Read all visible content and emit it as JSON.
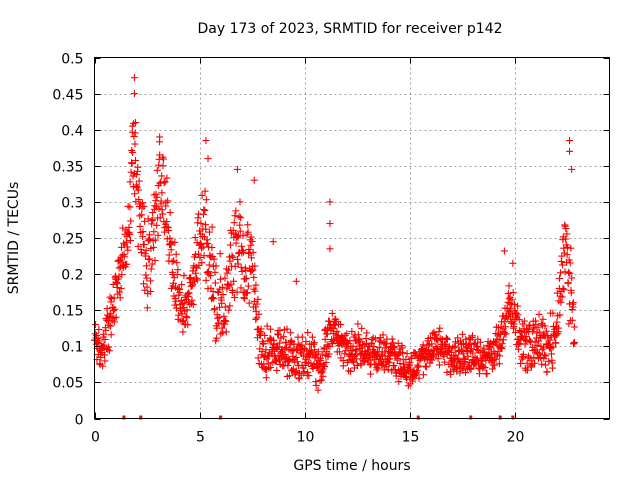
{
  "chart_data": {
    "type": "scatter",
    "title": "Day 173 of 2023, SRMTID for receiver p142",
    "xlabel": "GPS time / hours",
    "ylabel": "SRMTID / TECUs",
    "xlim": [
      0,
      24.5
    ],
    "ylim": [
      0,
      0.5
    ],
    "x_ticks": [
      0,
      5,
      10,
      15,
      20
    ],
    "x_tick_labels": [
      "0",
      "5",
      "10",
      "15",
      "20"
    ],
    "y_ticks": [
      0,
      0.05,
      0.1,
      0.15,
      0.2,
      0.25,
      0.3,
      0.35,
      0.4,
      0.45,
      0.5
    ],
    "y_tick_labels": [
      "0",
      "0.05",
      "0.1",
      "0.15",
      "0.2",
      "0.25",
      "0.3",
      "0.35",
      "0.4",
      "0.45",
      "0.5"
    ],
    "grid": true,
    "marker": "+",
    "color": "#ff0000",
    "series": [
      {
        "name": "SRMTID p142",
        "profile": [
          [
            0.0,
            0.12
          ],
          [
            0.3,
            0.09
          ],
          [
            0.6,
            0.12
          ],
          [
            0.9,
            0.15
          ],
          [
            1.2,
            0.19
          ],
          [
            1.5,
            0.24
          ],
          [
            1.7,
            0.3
          ],
          [
            1.85,
            0.36
          ],
          [
            2.0,
            0.32
          ],
          [
            2.2,
            0.25
          ],
          [
            2.5,
            0.2
          ],
          [
            2.8,
            0.26
          ],
          [
            3.0,
            0.3
          ],
          [
            3.2,
            0.31
          ],
          [
            3.5,
            0.27
          ],
          [
            3.8,
            0.2
          ],
          [
            4.0,
            0.17
          ],
          [
            4.3,
            0.15
          ],
          [
            4.6,
            0.18
          ],
          [
            4.9,
            0.22
          ],
          [
            5.2,
            0.26
          ],
          [
            5.5,
            0.22
          ],
          [
            5.8,
            0.16
          ],
          [
            6.1,
            0.15
          ],
          [
            6.5,
            0.22
          ],
          [
            6.9,
            0.25
          ],
          [
            7.2,
            0.2
          ],
          [
            7.5,
            0.22
          ],
          [
            7.8,
            0.12
          ],
          [
            8.0,
            0.09
          ],
          [
            8.5,
            0.1
          ],
          [
            9.0,
            0.1
          ],
          [
            9.5,
            0.08
          ],
          [
            10.0,
            0.09
          ],
          [
            10.3,
            0.08
          ],
          [
            10.7,
            0.06
          ],
          [
            11.0,
            0.1
          ],
          [
            11.3,
            0.12
          ],
          [
            11.7,
            0.1
          ],
          [
            12.0,
            0.09
          ],
          [
            12.5,
            0.1
          ],
          [
            13.0,
            0.09
          ],
          [
            13.5,
            0.09
          ],
          [
            14.0,
            0.09
          ],
          [
            14.5,
            0.08
          ],
          [
            15.0,
            0.07
          ],
          [
            15.5,
            0.08
          ],
          [
            16.0,
            0.1
          ],
          [
            16.5,
            0.1
          ],
          [
            17.0,
            0.08
          ],
          [
            17.5,
            0.09
          ],
          [
            18.0,
            0.09
          ],
          [
            18.5,
            0.08
          ],
          [
            19.0,
            0.09
          ],
          [
            19.3,
            0.11
          ],
          [
            19.7,
            0.16
          ],
          [
            20.0,
            0.14
          ],
          [
            20.3,
            0.1
          ],
          [
            20.7,
            0.1
          ],
          [
            21.0,
            0.11
          ],
          [
            21.4,
            0.1
          ],
          [
            21.8,
            0.11
          ],
          [
            22.0,
            0.14
          ],
          [
            22.2,
            0.18
          ],
          [
            22.4,
            0.26
          ],
          [
            22.6,
            0.2
          ],
          [
            22.8,
            0.13
          ]
        ],
        "spread": [
          [
            0.0,
            0.03
          ],
          [
            1.5,
            0.06
          ],
          [
            2.0,
            0.08
          ],
          [
            3.5,
            0.08
          ],
          [
            4.5,
            0.04
          ],
          [
            5.2,
            0.08
          ],
          [
            7.5,
            0.07
          ],
          [
            8.0,
            0.04
          ],
          [
            11.0,
            0.04
          ],
          [
            15.0,
            0.03
          ],
          [
            19.0,
            0.03
          ],
          [
            20.0,
            0.04
          ],
          [
            22.0,
            0.05
          ],
          [
            22.5,
            0.1
          ],
          [
            22.8,
            0.05
          ]
        ],
        "peaks": [
          {
            "x": 1.9,
            "y": 0.472
          },
          {
            "x": 1.9,
            "y": 0.45
          },
          {
            "x": 1.8,
            "y": 0.405
          },
          {
            "x": 1.95,
            "y": 0.41
          },
          {
            "x": 3.1,
            "y": 0.39
          },
          {
            "x": 3.1,
            "y": 0.365
          },
          {
            "x": 5.3,
            "y": 0.385
          },
          {
            "x": 5.4,
            "y": 0.36
          },
          {
            "x": 6.8,
            "y": 0.345
          },
          {
            "x": 7.6,
            "y": 0.33
          },
          {
            "x": 11.2,
            "y": 0.3
          },
          {
            "x": 11.2,
            "y": 0.27
          },
          {
            "x": 11.2,
            "y": 0.235
          },
          {
            "x": 9.6,
            "y": 0.19
          },
          {
            "x": 22.6,
            "y": 0.385
          },
          {
            "x": 22.6,
            "y": 0.37
          },
          {
            "x": 22.7,
            "y": 0.345
          },
          {
            "x": 19.5,
            "y": 0.232
          },
          {
            "x": 19.9,
            "y": 0.215
          },
          {
            "x": 8.5,
            "y": 0.245
          }
        ],
        "zero_markers": [
          1.4,
          2.2,
          6.0,
          15.4,
          17.9,
          19.3,
          19.9
        ]
      }
    ]
  }
}
